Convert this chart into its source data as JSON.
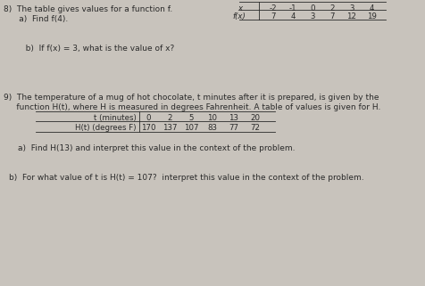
{
  "bg_color": "#c8c3bc",
  "text_color": "#2a2a2a",
  "problem8_header": "8)  The table gives values for a function f.",
  "problem8a": "      a)  Find f(4).",
  "problem8b": "   b)  If f(x) = 3, what is the value of x?",
  "table8_x_label": "x",
  "table8_fx_label": "f(x)",
  "table8_x_vals": [
    "-2",
    "-1",
    "0",
    "2",
    "3",
    "4"
  ],
  "table8_fx_vals": [
    "7",
    "4",
    "3",
    "7",
    "12",
    "19"
  ],
  "problem9_header1": "9)  The temperature of a mug of hot chocolate, t minutes after it is prepared, is given by the",
  "problem9_header2": "     function H(t), where H is measured in degrees Fahrenheit. A table of values is given for H.",
  "table9_t_label": "t (minutes)",
  "table9_Ht_label": "H(t) (degrees F)",
  "table9_t_vals": [
    "0",
    "2",
    "5",
    "10",
    "13",
    "20"
  ],
  "table9_Ht_vals": [
    "170",
    "137",
    "107",
    "83",
    "77",
    "72"
  ],
  "problem9a": "a)  Find H(13) and interpret this value in the context of the problem.",
  "problem9b": "b)  For what value of t is H(t) = 107?  interpret this value in the context of the problem."
}
